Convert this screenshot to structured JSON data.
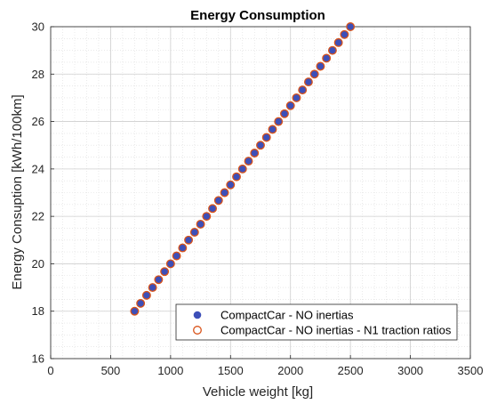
{
  "chart_data": {
    "type": "scatter",
    "title": "Energy Consumption",
    "xlabel": "Vehicle weight [kg]",
    "ylabel": "Energy Consuption [kWh/100km]",
    "xlim": [
      0,
      3500
    ],
    "ylim": [
      16,
      30
    ],
    "xticks": [
      0,
      500,
      1000,
      1500,
      2000,
      2500,
      3000,
      3500
    ],
    "yticks": [
      16,
      18,
      20,
      22,
      24,
      26,
      28,
      30
    ],
    "grid": true,
    "minor_grid": true,
    "legend_position": "bottom-right",
    "series": [
      {
        "name": "CompactCar - NO inertias",
        "marker": "filled-circle",
        "color": "#3d4fb8",
        "x": [
          700,
          750,
          800,
          850,
          900,
          950,
          1000,
          1050,
          1100,
          1150,
          1200,
          1250,
          1300,
          1350,
          1400,
          1450,
          1500,
          1550,
          1600,
          1650,
          1700,
          1750,
          1800,
          1850,
          1900,
          1950,
          2000,
          2050,
          2100,
          2150,
          2200,
          2250,
          2300,
          2350,
          2400,
          2450,
          2500
        ],
        "y": [
          18.0,
          18.33,
          18.67,
          19.0,
          19.33,
          19.67,
          20.0,
          20.33,
          20.67,
          21.0,
          21.33,
          21.67,
          22.0,
          22.33,
          22.67,
          23.0,
          23.33,
          23.67,
          24.0,
          24.33,
          24.67,
          25.0,
          25.33,
          25.67,
          26.0,
          26.33,
          26.67,
          27.0,
          27.33,
          27.67,
          28.0,
          28.33,
          28.67,
          29.0,
          29.33,
          29.67,
          30.0
        ]
      },
      {
        "name": "CompactCar - NO inertias - N1 traction ratios",
        "marker": "open-circle",
        "color": "#d95319",
        "x": [
          700,
          750,
          800,
          850,
          900,
          950,
          1000,
          1050,
          1100,
          1150,
          1200,
          1250,
          1300,
          1350,
          1400,
          1450,
          1500,
          1550,
          1600,
          1650,
          1700,
          1750,
          1800,
          1850,
          1900,
          1950,
          2000,
          2050,
          2100,
          2150,
          2200,
          2250,
          2300,
          2350,
          2400,
          2450,
          2500
        ],
        "y": [
          18.0,
          18.33,
          18.67,
          19.0,
          19.33,
          19.67,
          20.0,
          20.33,
          20.67,
          21.0,
          21.33,
          21.67,
          22.0,
          22.33,
          22.67,
          23.0,
          23.33,
          23.67,
          24.0,
          24.33,
          24.67,
          25.0,
          25.33,
          25.67,
          26.0,
          26.33,
          26.67,
          27.0,
          27.33,
          27.67,
          28.0,
          28.33,
          28.67,
          29.0,
          29.33,
          29.67,
          30.0
        ]
      }
    ]
  }
}
